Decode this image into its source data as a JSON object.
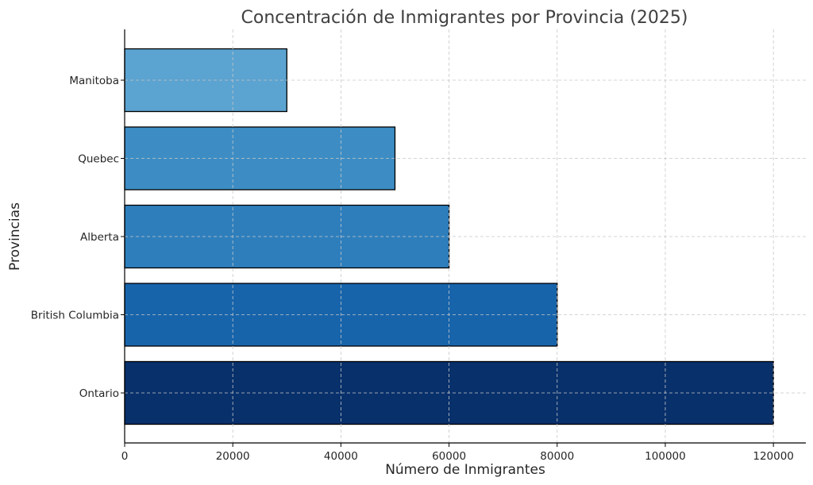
{
  "chart_data": {
    "type": "bar",
    "orientation": "horizontal",
    "title": "Concentración de Inmigrantes por Provincia (2025)",
    "xlabel": "Número de Inmigrantes",
    "ylabel": "Provincias",
    "categories": [
      "Ontario",
      "British Columbia",
      "Alberta",
      "Quebec",
      "Manitoba"
    ],
    "values": [
      120000,
      80000,
      60000,
      50000,
      30000
    ],
    "colors": [
      "#08306b",
      "#1764ab",
      "#2e7ebc",
      "#3d8dc4",
      "#5ba3d0"
    ],
    "xticks": [
      0,
      20000,
      40000,
      60000,
      80000,
      100000,
      120000
    ],
    "xlim": [
      0,
      126000
    ],
    "grid": true
  }
}
